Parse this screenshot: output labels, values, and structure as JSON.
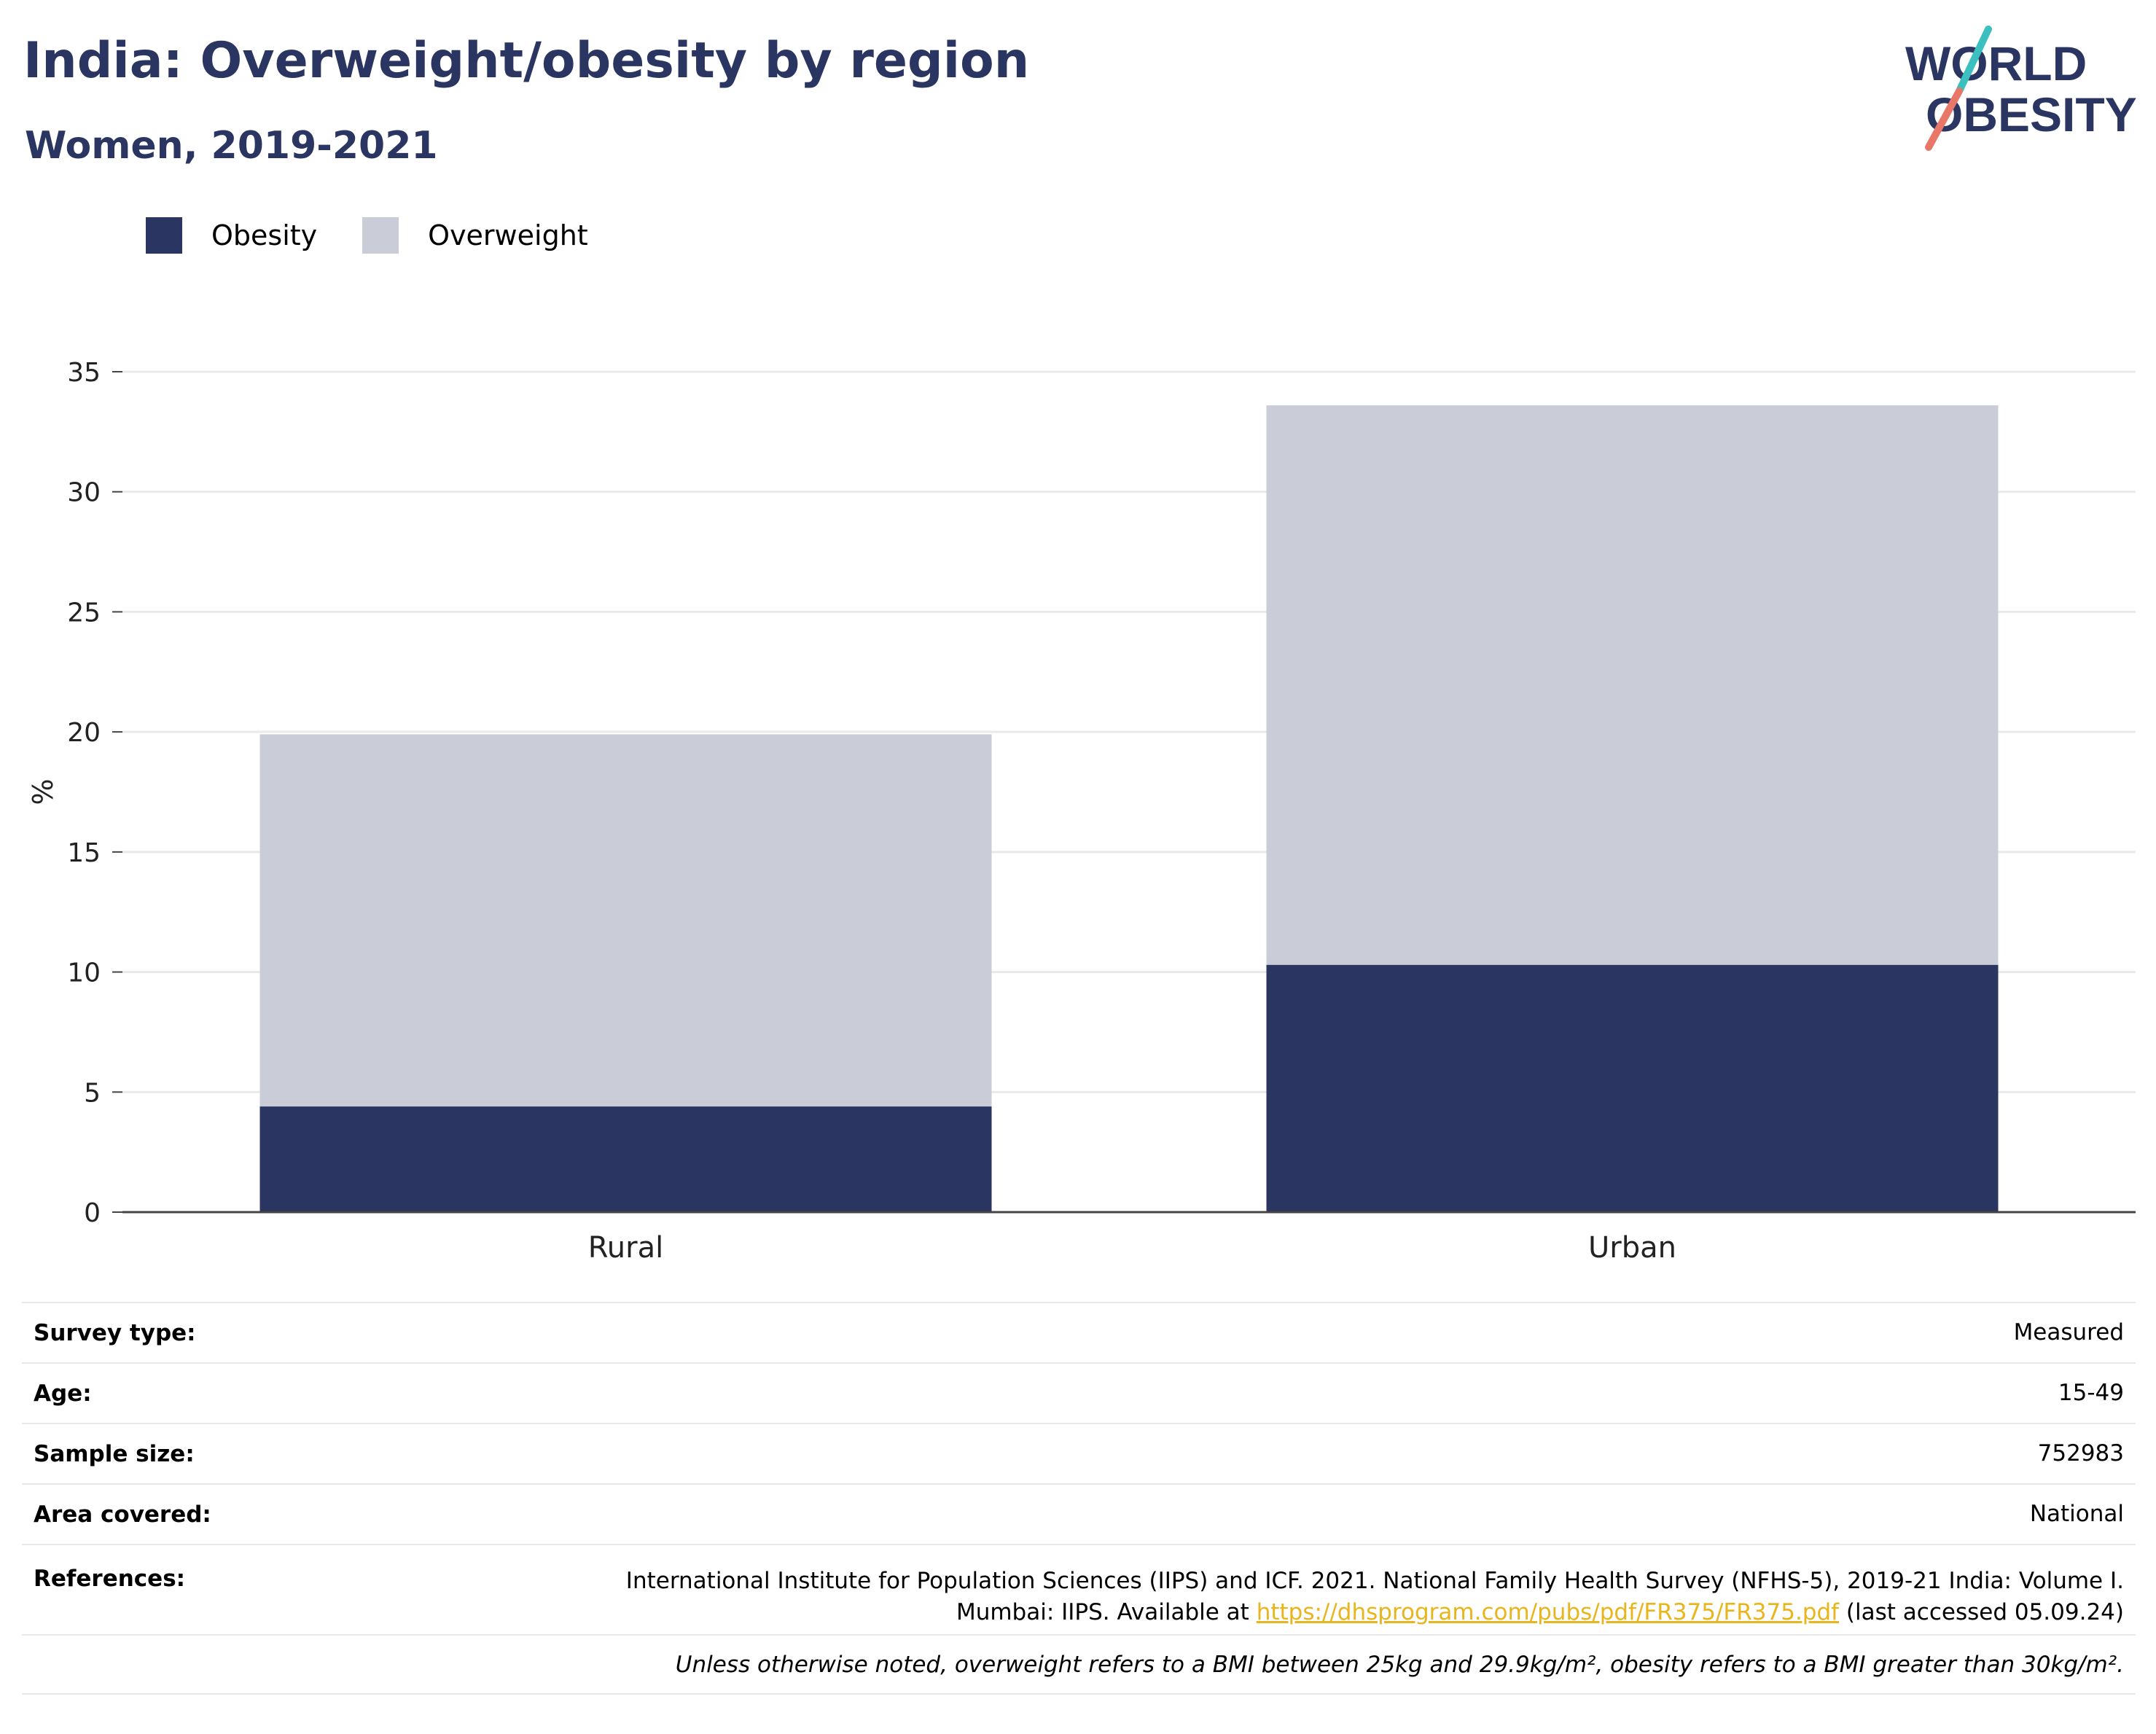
{
  "title": "India: Overweight/obesity by region",
  "subtitle": "Women, 2019-2021",
  "logo": {
    "line1": "WORLD",
    "line2": "OBESITY"
  },
  "chart_data": {
    "type": "bar",
    "stacked": true,
    "categories": [
      "Rural",
      "Urban"
    ],
    "series": [
      {
        "name": "Obesity",
        "values": [
          4.4,
          10.3
        ],
        "color": "#2b3561"
      },
      {
        "name": "Overweight",
        "values": [
          15.5,
          23.3
        ],
        "color": "#caccd7"
      }
    ],
    "ylabel": "%",
    "ylim": [
      0,
      35
    ],
    "yticks": [
      0,
      5,
      10,
      15,
      20,
      25,
      30,
      35
    ],
    "grid": true,
    "legend": "top-left"
  },
  "meta": {
    "survey_type_label": "Survey type:",
    "survey_type": "Measured",
    "age_label": "Age:",
    "age": "15-49",
    "sample_size_label": "Sample size:",
    "sample_size": "752983",
    "area_label": "Area covered:",
    "area": "National",
    "references_label": "References:",
    "references_line1": "International Institute for Population Sciences (IIPS) and ICF. 2021. National Family Health Survey (NFHS-5), 2019-21 India: Volume I.",
    "references_pre": "Mumbai: IIPS. Available at ",
    "references_link": "https://dhsprogram.com/pubs/pdf/FR375/FR375.pdf",
    "references_post": " (last accessed 05.09.24)",
    "note": "Unless otherwise noted, overweight refers to a BMI between 25kg and 29.9kg/m², obesity refers to a BMI greater than 30kg/m²."
  }
}
